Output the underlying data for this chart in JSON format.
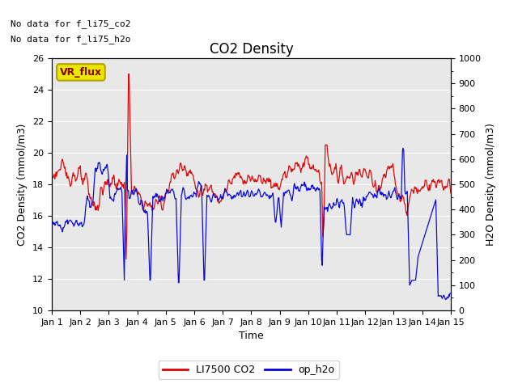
{
  "title": "CO2 Density",
  "xlabel": "Time",
  "ylabel_left": "CO2 Density (mmol/m3)",
  "ylabel_right": "H2O Density (mmol/m3)",
  "ylim_left": [
    10,
    26
  ],
  "ylim_right": [
    0,
    1000
  ],
  "xlim": [
    0,
    14
  ],
  "xtick_labels": [
    "Jan 1",
    "Jan 2",
    "Jan 3",
    "Jan 4",
    "Jan 5",
    "Jan 6",
    "Jan 7",
    "Jan 8",
    "Jan 9",
    "Jan 10",
    "Jan 11",
    "Jan 12",
    "Jan 13",
    "Jan 14",
    "Jan 15"
  ],
  "xtick_positions": [
    0,
    1,
    2,
    3,
    4,
    5,
    6,
    7,
    8,
    9,
    10,
    11,
    12,
    13,
    14
  ],
  "annotation1": "No data for f_li75_co2",
  "annotation2": "No data for f_li75_h2o",
  "vr_flux_label": "VR_flux",
  "legend_co2": "LI7500 CO2",
  "legend_h2o": "op_h2o",
  "co2_color": "#dd0000",
  "h2o_color": "#0000dd",
  "bg_color": "#e8e8e8",
  "vr_flux_box_color": "#e8e800",
  "vr_flux_text_color": "#8b0000",
  "vr_flux_edge_color": "#b8a000",
  "title_fontsize": 12,
  "axis_label_fontsize": 9,
  "tick_fontsize": 8,
  "annotation_fontsize": 8,
  "legend_fontsize": 9
}
